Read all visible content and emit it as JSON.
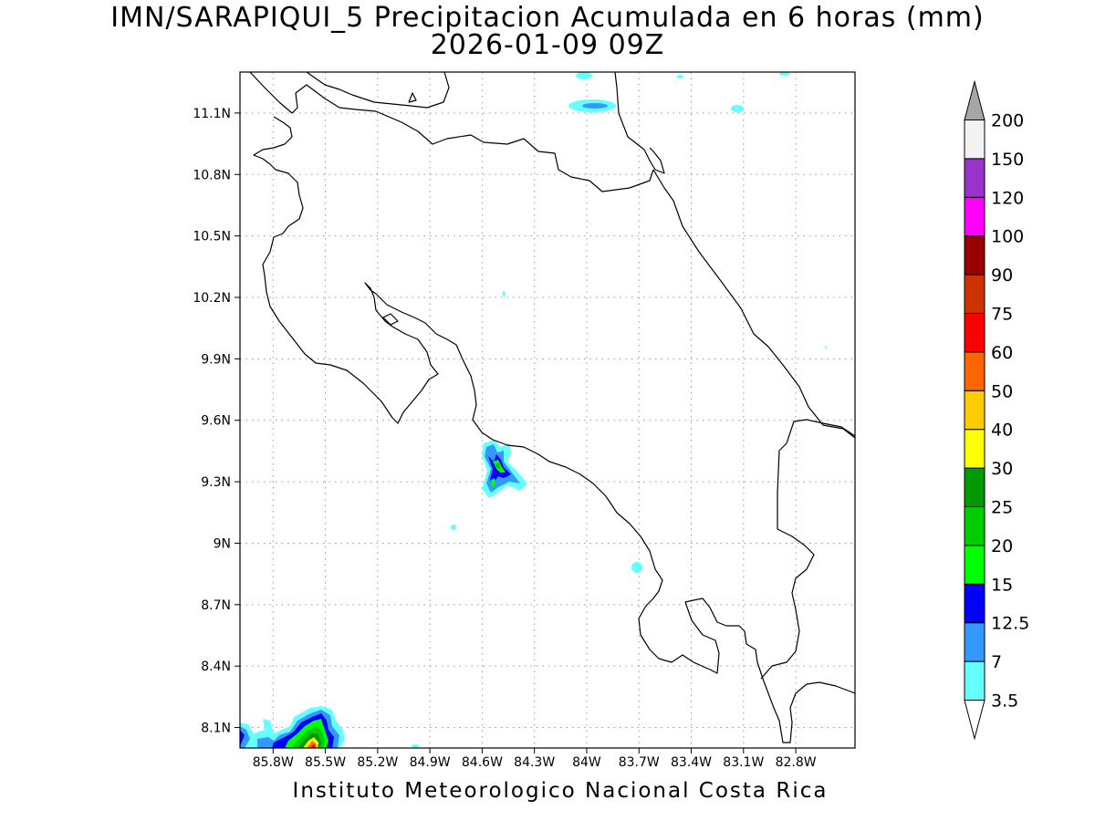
{
  "title_line1": "IMN/SARAPIQUI_5 Precipitacion Acumulada en 6 horas (mm)",
  "title_line2": "2026-01-09 09Z",
  "footer": "Instituto Meteorologico Nacional Costa Rica",
  "map_extent": {
    "lon_min": -85.99,
    "lon_max": -82.46,
    "lat_min": 8.0,
    "lat_max": 11.3
  },
  "grid": {
    "style": "dotted",
    "visible": true
  },
  "lat_ticks": [
    {
      "label": "11.1N",
      "value": 11.1
    },
    {
      "label": "10.8N",
      "value": 10.8
    },
    {
      "label": "10.5N",
      "value": 10.5
    },
    {
      "label": "10.2N",
      "value": 10.2
    },
    {
      "label": "9.9N",
      "value": 9.9
    },
    {
      "label": "9.6N",
      "value": 9.6
    },
    {
      "label": "9.3N",
      "value": 9.3
    },
    {
      "label": "9N",
      "value": 9.0
    },
    {
      "label": "8.7N",
      "value": 8.7
    },
    {
      "label": "8.4N",
      "value": 8.4
    },
    {
      "label": "8.1N",
      "value": 8.1
    }
  ],
  "lon_ticks": [
    {
      "label": "85.8W",
      "value": -85.8
    },
    {
      "label": "85.5W",
      "value": -85.5
    },
    {
      "label": "85.2W",
      "value": -85.2
    },
    {
      "label": "84.9W",
      "value": -84.9
    },
    {
      "label": "84.6W",
      "value": -84.6
    },
    {
      "label": "84.3W",
      "value": -84.3
    },
    {
      "label": "84W",
      "value": -84.0
    },
    {
      "label": "83.7W",
      "value": -83.7
    },
    {
      "label": "83.4W",
      "value": -83.4
    },
    {
      "label": "83.1W",
      "value": -83.1
    },
    {
      "label": "82.8W",
      "value": -82.8
    }
  ],
  "legend": {
    "bins": [
      {
        "color": "#66ffff",
        "label": "3.5"
      },
      {
        "color": "#3399ff",
        "label": "7"
      },
      {
        "color": "#0000ff",
        "label": "12.5"
      },
      {
        "color": "#00ff00",
        "label": "15"
      },
      {
        "color": "#00cc00",
        "label": "20"
      },
      {
        "color": "#009900",
        "label": "25"
      },
      {
        "color": "#ffff00",
        "label": "30"
      },
      {
        "color": "#ffcc00",
        "label": "40"
      },
      {
        "color": "#ff6600",
        "label": "50"
      },
      {
        "color": "#ff0000",
        "label": "60"
      },
      {
        "color": "#cc3300",
        "label": "75"
      },
      {
        "color": "#990000",
        "label": "90"
      },
      {
        "color": "#ff00ff",
        "label": "100"
      },
      {
        "color": "#9933cc",
        "label": "120"
      },
      {
        "color": "#f2f2f2",
        "label": "150"
      }
    ],
    "top_label": "200",
    "overflow_color": "#a6a6a6",
    "underflow_color": "#ffffff"
  }
}
